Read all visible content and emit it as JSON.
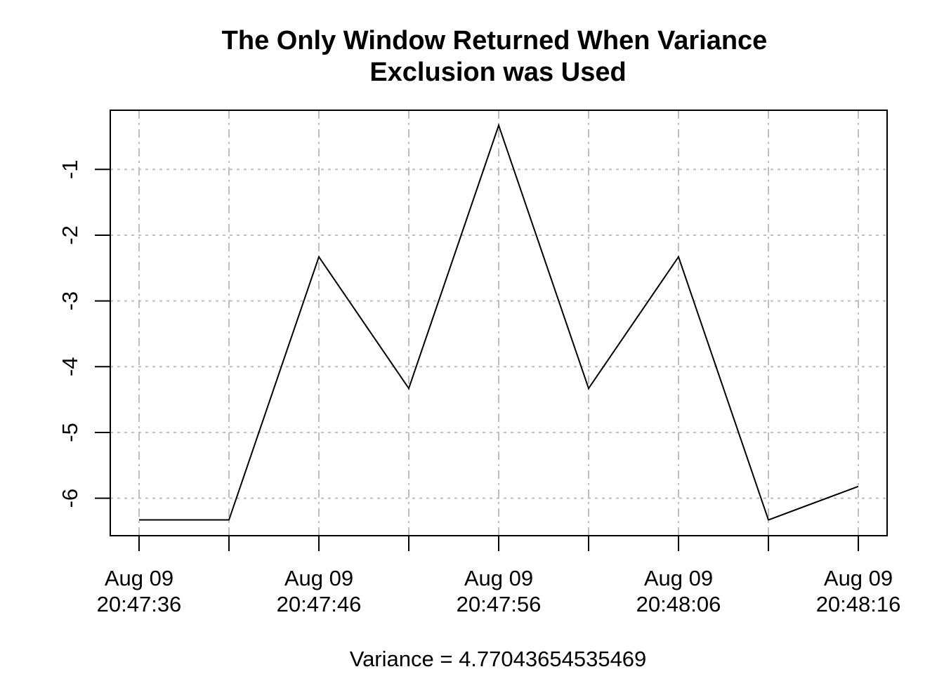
{
  "chart_data": {
    "type": "line",
    "title": "The Only Window Returned When Variance Exclusion was Used",
    "title_lines": [
      "The Only Window Returned When Variance",
      "Exclusion was Used"
    ],
    "xlabel": "Variance = 4.77043654535469",
    "ylabel": "",
    "x": [
      "20:47:36",
      "20:47:41",
      "20:47:46",
      "20:47:51",
      "20:47:56",
      "20:48:01",
      "20:48:06",
      "20:48:11",
      "20:48:16"
    ],
    "series": [
      {
        "values": [
          -6.33,
          -6.33,
          -2.33,
          -4.33,
          -0.33,
          -4.33,
          -2.33,
          -6.33,
          -5.82
        ]
      }
    ],
    "xlim": [
      "20:47:34.4",
      "20:48:17.6"
    ],
    "ylim": [
      -6.57,
      -0.1
    ],
    "x_ticks": [
      {
        "x": "20:47:36",
        "line1": "Aug 09",
        "line2": "20:47:36"
      },
      {
        "x": "20:47:41",
        "line1": "",
        "line2": ""
      },
      {
        "x": "20:47:46",
        "line1": "Aug 09",
        "line2": "20:47:46"
      },
      {
        "x": "20:47:51",
        "line1": "",
        "line2": ""
      },
      {
        "x": "20:47:56",
        "line1": "Aug 09",
        "line2": "20:47:56"
      },
      {
        "x": "20:48:01",
        "line1": "",
        "line2": ""
      },
      {
        "x": "20:48:06",
        "line1": "Aug 09",
        "line2": "20:48:06"
      },
      {
        "x": "20:48:11",
        "line1": "",
        "line2": ""
      },
      {
        "x": "20:48:16",
        "line1": "Aug 09",
        "line2": "20:48:16"
      }
    ],
    "y_ticks": [
      -1,
      -2,
      -3,
      -4,
      -5,
      -6
    ],
    "y_tick_labels": [
      "-1",
      "-2",
      "-3",
      "-4",
      "-5",
      "-6"
    ],
    "grid": true,
    "line_color": "#000000",
    "grid_color": "#bebebe"
  }
}
